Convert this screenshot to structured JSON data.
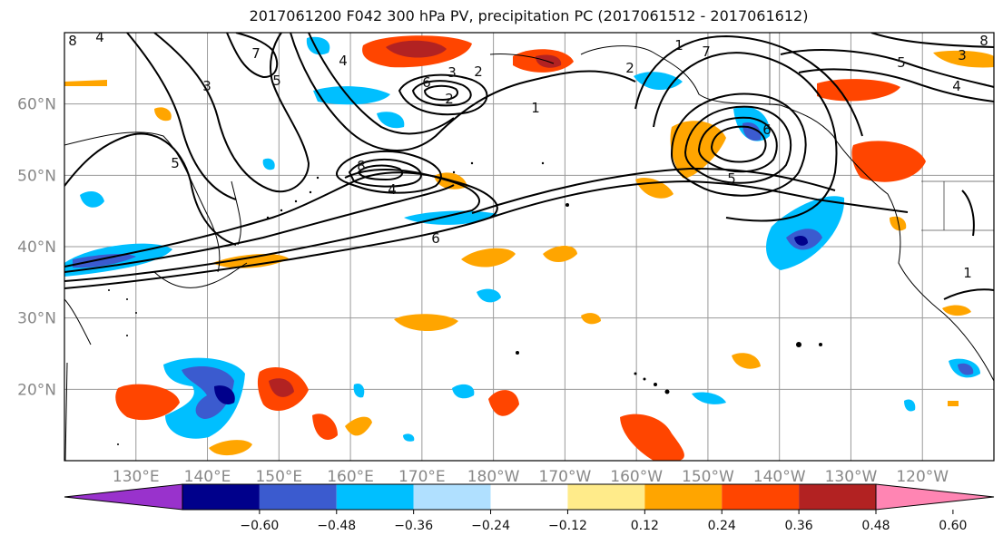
{
  "title": "2017061200 F042 300 hPa PV, precipitation PC (2017061512 - 2017061612)",
  "map": {
    "lat_ticks": [
      {
        "value": 60,
        "label": "60°N"
      },
      {
        "value": 50,
        "label": "50°N"
      },
      {
        "value": 40,
        "label": "40°N"
      },
      {
        "value": 30,
        "label": "30°N"
      },
      {
        "value": 20,
        "label": "20°N"
      }
    ],
    "lon_ticks": [
      {
        "value": 130,
        "label": "130°E"
      },
      {
        "value": 140,
        "label": "140°E"
      },
      {
        "value": 150,
        "label": "150°E"
      },
      {
        "value": 160,
        "label": "160°E"
      },
      {
        "value": 170,
        "label": "170°E"
      },
      {
        "value": 180,
        "label": "180°W"
      },
      {
        "value": 190,
        "label": "170°W"
      },
      {
        "value": 200,
        "label": "160°W"
      },
      {
        "value": 210,
        "label": "150°W"
      },
      {
        "value": 220,
        "label": "140°W"
      },
      {
        "value": 230,
        "label": "130°W"
      },
      {
        "value": 240,
        "label": "120°W"
      }
    ],
    "pv_contour_labels": [
      "8",
      "4",
      "7",
      "3",
      "5",
      "4",
      "2",
      "1",
      "5",
      "8",
      "4",
      "2",
      "3",
      "6",
      "5",
      "6",
      "7",
      "1",
      "2",
      "3",
      "4",
      "5",
      "6",
      "8",
      "1"
    ]
  },
  "colorbar": {
    "colors": [
      "#9932CC",
      "#00008B",
      "#3B5BCF",
      "#00BFFF",
      "#B0E0FF",
      "#FFFFFF",
      "#FFEB8A",
      "#FFA500",
      "#FF4500",
      "#B22222",
      "#FF85B3"
    ],
    "ticks": [
      "−0.60",
      "−0.48",
      "−0.36",
      "−0.24",
      "−0.12",
      "0.12",
      "0.24",
      "0.36",
      "0.48",
      "0.60"
    ]
  }
}
